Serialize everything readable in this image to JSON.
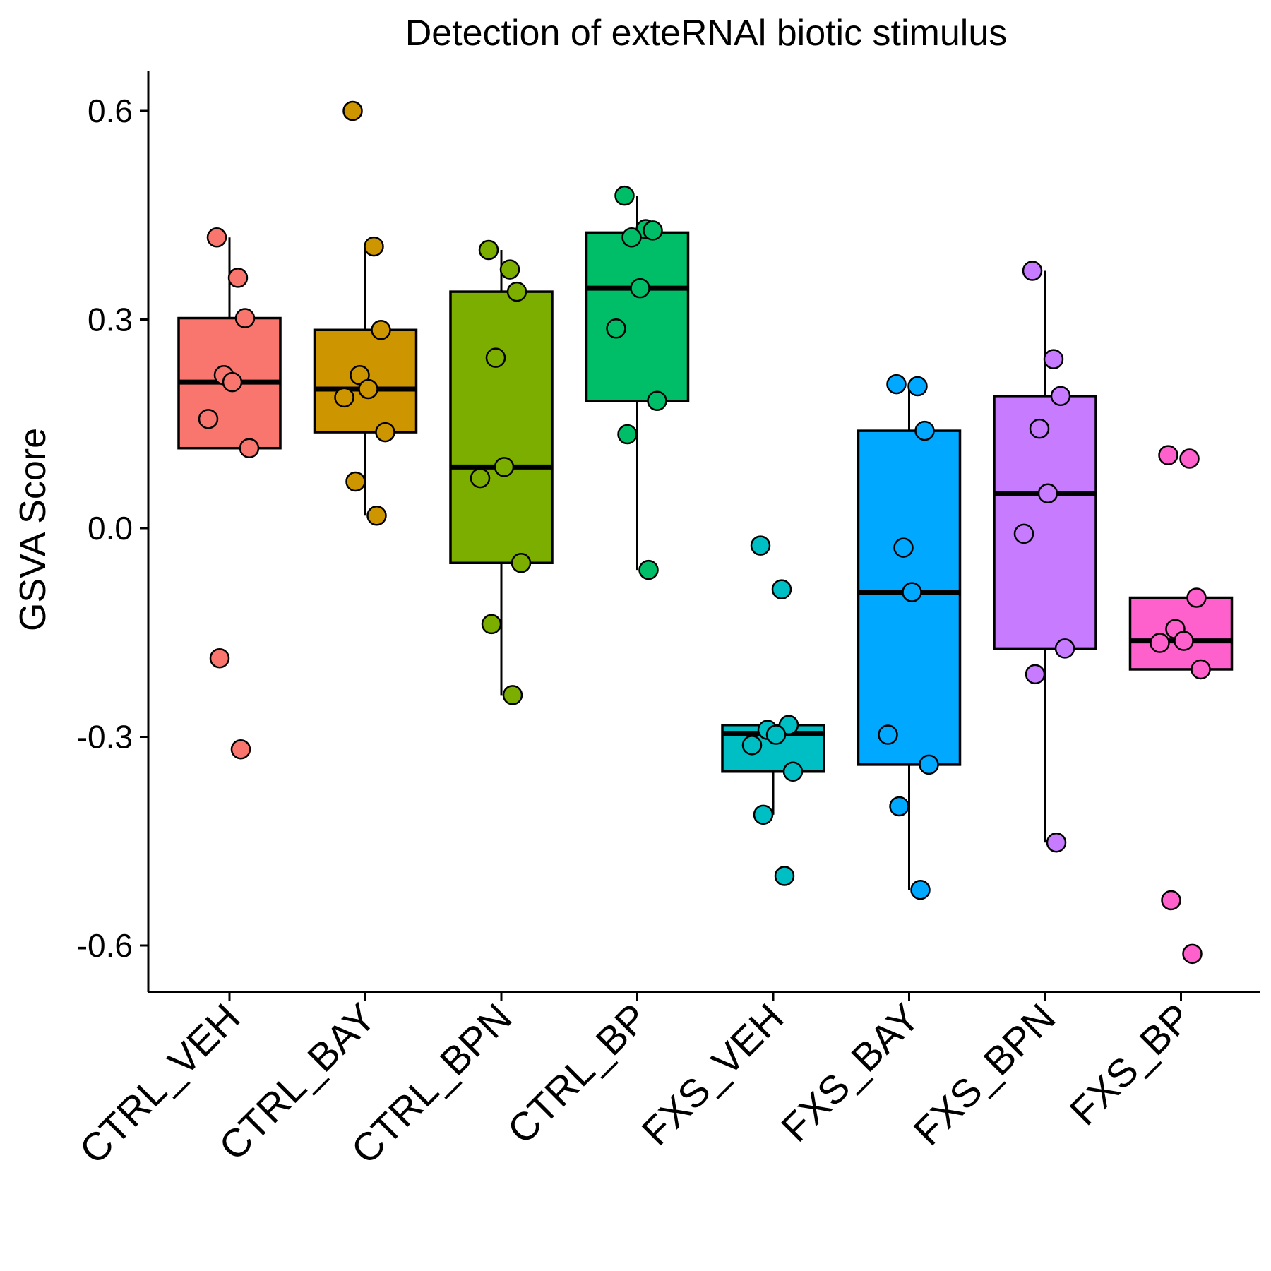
{
  "chart_data": {
    "type": "box",
    "title": "Detection of exteRNAl biotic stimulus",
    "xlabel": "",
    "ylabel": "GSVA Score",
    "ylim": [
      -0.665,
      0.66
    ],
    "yticks": [
      -0.6,
      -0.3,
      0.0,
      0.3,
      0.6
    ],
    "ytick_labels": [
      "-0.6",
      "-0.3",
      "0.0",
      "0.3",
      "0.6"
    ],
    "grid": false,
    "legend": "none",
    "categories": [
      "CTRL_VEH",
      "CTRL_BAY",
      "CTRL_BPN",
      "CTRL_BP",
      "FXS_VEH",
      "FXS_BAY",
      "FXS_BPN",
      "FXS_BP"
    ],
    "colors": [
      "#F8766D",
      "#CD9600",
      "#7CAE00",
      "#00BE67",
      "#00BFC4",
      "#00A9FF",
      "#C77CFF",
      "#FF61CC"
    ],
    "boxes": [
      {
        "q1": 0.115,
        "median": 0.21,
        "q3": 0.302,
        "whisker_low": 0.115,
        "whisker_high": 0.418,
        "points": [
          0.418,
          0.36,
          0.302,
          0.22,
          0.21,
          0.157,
          0.115,
          -0.187,
          -0.318
        ]
      },
      {
        "q1": 0.138,
        "median": 0.2,
        "q3": 0.285,
        "whisker_low": 0.018,
        "whisker_high": 0.405,
        "points": [
          0.6,
          0.405,
          0.285,
          0.22,
          0.2,
          0.188,
          0.138,
          0.067,
          0.018
        ]
      },
      {
        "q1": -0.05,
        "median": 0.088,
        "q3": 0.34,
        "whisker_low": -0.24,
        "whisker_high": 0.4,
        "points": [
          0.4,
          0.372,
          0.34,
          0.245,
          0.088,
          0.072,
          -0.05,
          -0.138,
          -0.24
        ]
      },
      {
        "q1": 0.183,
        "median": 0.345,
        "q3": 0.425,
        "whisker_low": -0.06,
        "whisker_high": 0.478,
        "points": [
          0.478,
          0.43,
          0.428,
          0.418,
          0.345,
          0.287,
          0.183,
          0.135,
          -0.06
        ]
      },
      {
        "q1": -0.35,
        "median": -0.295,
        "q3": -0.283,
        "whisker_low": -0.412,
        "whisker_high": -0.283,
        "points": [
          -0.025,
          -0.088,
          -0.283,
          -0.29,
          -0.297,
          -0.312,
          -0.35,
          -0.412,
          -0.5
        ]
      },
      {
        "q1": -0.34,
        "median": -0.092,
        "q3": 0.14,
        "whisker_low": -0.52,
        "whisker_high": 0.205,
        "points": [
          0.207,
          0.204,
          0.14,
          -0.028,
          -0.092,
          -0.297,
          -0.34,
          -0.4,
          -0.52
        ]
      },
      {
        "q1": -0.173,
        "median": 0.05,
        "q3": 0.19,
        "whisker_low": -0.452,
        "whisker_high": 0.37,
        "points": [
          0.37,
          0.243,
          0.19,
          0.143,
          0.05,
          -0.008,
          -0.173,
          -0.21,
          -0.452
        ]
      },
      {
        "q1": -0.203,
        "median": -0.162,
        "q3": -0.1,
        "whisker_low": -0.203,
        "whisker_high": -0.1,
        "points": [
          0.105,
          0.1,
          -0.1,
          -0.145,
          -0.162,
          -0.165,
          -0.203,
          -0.535,
          -0.612
        ]
      }
    ]
  }
}
